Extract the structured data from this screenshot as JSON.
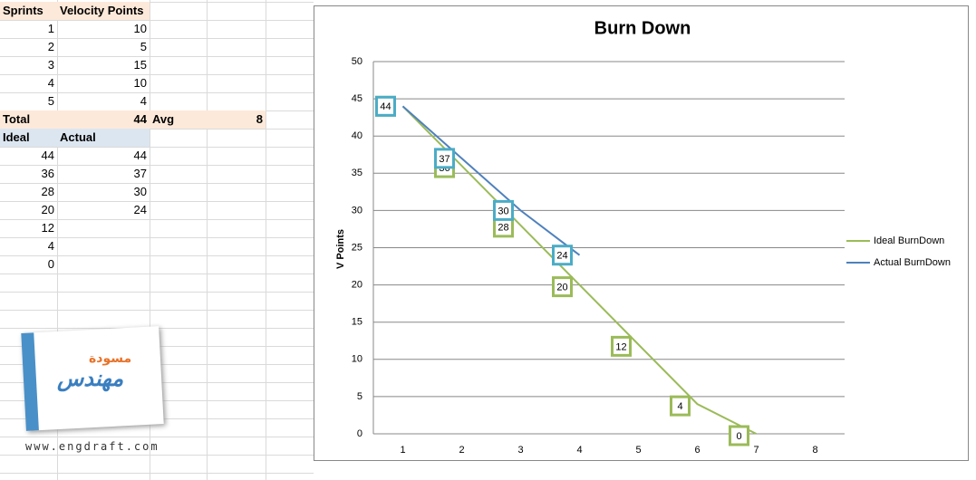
{
  "sheet": {
    "header": [
      "Sprints",
      "Velocity Points"
    ],
    "rows": [
      [
        1,
        10
      ],
      [
        2,
        5
      ],
      [
        3,
        15
      ],
      [
        4,
        10
      ],
      [
        5,
        4
      ]
    ],
    "total": {
      "label": "Total",
      "value": 44,
      "avg_label": "Avg",
      "avg": 8
    },
    "header2": [
      "Ideal",
      "Actual"
    ],
    "rows2": [
      [
        44,
        44
      ],
      [
        36,
        37
      ],
      [
        28,
        30
      ],
      [
        20,
        24
      ],
      [
        12,
        null
      ],
      [
        4,
        null
      ],
      [
        0,
        null
      ]
    ]
  },
  "logo": {
    "line1": "مسودة",
    "line2": "مهندس",
    "url": "www.engdraft.com"
  },
  "chart_data": {
    "type": "line",
    "title": "Burn Down",
    "y_label": "V Points",
    "categories": [
      "1",
      "2",
      "3",
      "4",
      "5",
      "6",
      "7",
      "8"
    ],
    "series": [
      {
        "name": "Ideal BurnDown",
        "color": "#9bbb59",
        "values": [
          44,
          36,
          28,
          20,
          12,
          4,
          0,
          null
        ]
      },
      {
        "name": "Actual BurnDown",
        "color": "#4f81bd",
        "values": [
          44,
          37,
          30,
          24,
          null,
          null,
          null,
          null
        ]
      }
    ],
    "label_colors": [
      "#9bbb59",
      "#4bacc6"
    ],
    "ylim": [
      0,
      50
    ],
    "yticks": [
      0,
      5,
      10,
      15,
      20,
      25,
      30,
      35,
      40,
      45,
      50
    ],
    "grid": true,
    "legend": "right"
  }
}
